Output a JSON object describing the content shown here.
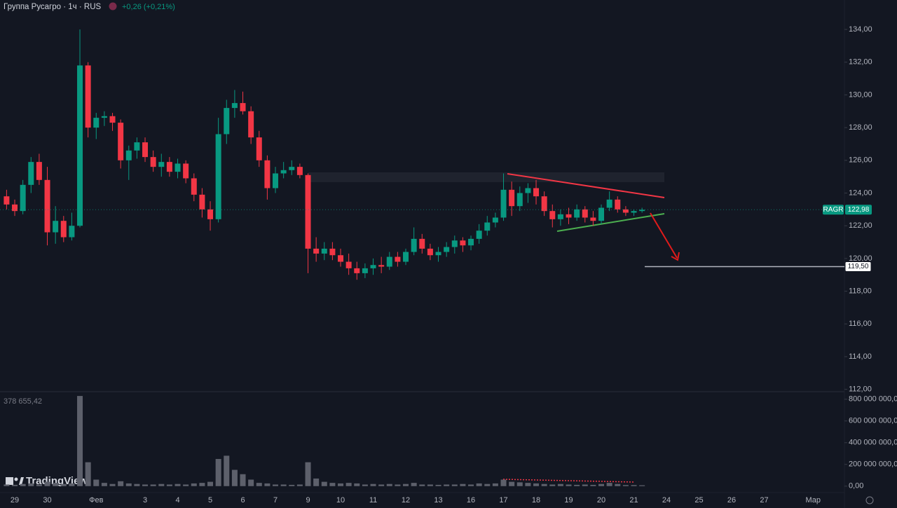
{
  "header": {
    "title": "Группа Русагро · 1ч · RUS",
    "change": "+0,26 (+0,21%)"
  },
  "branding": "TradingView",
  "chart_data": {
    "type": "candlestick",
    "categories": [
      null,
      "29",
      null,
      null,
      null,
      "30",
      null,
      null,
      null,
      null,
      null,
      "Фев",
      null,
      null,
      null,
      null,
      null,
      "3",
      null,
      null,
      null,
      "4",
      null,
      null,
      null,
      "5",
      null,
      null,
      null,
      "6",
      null,
      null,
      null,
      "7",
      null,
      null,
      null,
      "9",
      null,
      null,
      null,
      "10",
      null,
      null,
      null,
      "11",
      null,
      null,
      null,
      "12",
      null,
      null,
      null,
      "13",
      null,
      null,
      null,
      "16",
      null,
      null,
      null,
      "17",
      null,
      null,
      null,
      "18",
      null,
      null,
      null,
      "19",
      null,
      null,
      null,
      "20",
      null,
      null,
      null,
      "21",
      null,
      null,
      null,
      "24",
      null,
      null,
      null,
      "25",
      null,
      null,
      null,
      "26",
      null,
      null,
      null,
      "27",
      null,
      null,
      null,
      null,
      null,
      "Мар",
      null
    ],
    "open": [
      123.8,
      123.3,
      122.9,
      124.5,
      125.9,
      124.8,
      121.6,
      122.3,
      121.3,
      122.0,
      131.8,
      128.0,
      128.6,
      128.7,
      128.3,
      126.0,
      126.6,
      127.1,
      126.2,
      125.6,
      125.9,
      125.3,
      125.8,
      124.9,
      123.9,
      123.0,
      122.4,
      127.6,
      129.2,
      129.5,
      129.0,
      127.4,
      126.0,
      124.3,
      125.2,
      125.4,
      125.6,
      125.1,
      120.6,
      120.3,
      120.6,
      120.2,
      119.8,
      119.4,
      119.1,
      119.4,
      119.6,
      119.5,
      120.1,
      119.8,
      120.4,
      121.2,
      120.6,
      120.2,
      120.4,
      120.7,
      121.1,
      120.8,
      121.2,
      121.7,
      122.2,
      122.5,
      124.2,
      123.2,
      124.0,
      124.3,
      123.8,
      122.9,
      122.4,
      122.7,
      122.5,
      123.0,
      122.5,
      122.3,
      123.1,
      123.6,
      123.0,
      122.8,
      122.9,
      null,
      null,
      null,
      null,
      null,
      null,
      null,
      null,
      null,
      null,
      null,
      null,
      null,
      null,
      null,
      null,
      null,
      null,
      null,
      null,
      null,
      null
    ],
    "high": [
      124.2,
      123.6,
      124.8,
      126.2,
      126.4,
      125.6,
      123.2,
      122.6,
      122.8,
      134.0,
      132.0,
      128.9,
      129.0,
      128.9,
      128.5,
      126.9,
      127.4,
      127.4,
      126.6,
      126.4,
      126.2,
      126.1,
      126.0,
      125.2,
      124.3,
      123.5,
      128.6,
      129.7,
      130.3,
      130.2,
      129.3,
      127.8,
      126.3,
      125.6,
      125.9,
      126.0,
      125.8,
      125.2,
      121.3,
      121.0,
      121.0,
      120.6,
      120.3,
      119.8,
      119.7,
      120.0,
      120.1,
      120.4,
      120.4,
      120.6,
      121.9,
      121.5,
      120.9,
      120.7,
      121.0,
      121.4,
      121.3,
      121.4,
      122.1,
      122.6,
      122.8,
      125.2,
      124.7,
      124.4,
      124.6,
      124.8,
      124.1,
      123.3,
      123.0,
      123.1,
      123.3,
      123.2,
      122.9,
      123.3,
      124.1,
      123.8,
      123.2,
      123.0,
      123.1,
      null,
      null,
      null,
      null,
      null,
      null,
      null,
      null,
      null,
      null,
      null,
      null,
      null,
      null,
      null,
      null,
      null,
      null,
      null,
      null,
      null,
      null
    ],
    "low": [
      123.0,
      122.6,
      122.7,
      124.0,
      124.5,
      120.8,
      120.9,
      121.0,
      121.1,
      121.9,
      127.4,
      127.3,
      128.1,
      127.8,
      125.5,
      124.8,
      126.1,
      125.9,
      125.3,
      125.0,
      125.0,
      124.9,
      124.6,
      123.5,
      122.5,
      121.7,
      122.2,
      127.0,
      128.6,
      128.8,
      127.0,
      125.6,
      123.6,
      124.0,
      124.9,
      125.1,
      124.9,
      119.1,
      119.8,
      119.9,
      119.9,
      119.5,
      119.0,
      118.7,
      118.8,
      119.0,
      119.1,
      119.3,
      119.5,
      119.6,
      120.2,
      120.3,
      119.9,
      119.8,
      120.1,
      120.3,
      120.4,
      120.5,
      120.9,
      121.4,
      121.9,
      122.3,
      122.6,
      122.9,
      123.4,
      123.3,
      122.6,
      121.9,
      122.0,
      122.1,
      122.3,
      122.2,
      122.0,
      122.1,
      122.9,
      122.8,
      122.6,
      122.6,
      122.8,
      null,
      null,
      null,
      null,
      null,
      null,
      null,
      null,
      null,
      null,
      null,
      null,
      null,
      null,
      null,
      null,
      null,
      null,
      null,
      null,
      null,
      null
    ],
    "close": [
      123.3,
      122.9,
      124.5,
      125.9,
      124.8,
      121.6,
      122.3,
      121.3,
      122.0,
      131.8,
      128.0,
      128.6,
      128.7,
      128.3,
      126.0,
      126.6,
      127.1,
      126.2,
      125.6,
      125.9,
      125.3,
      125.8,
      124.9,
      123.9,
      123.0,
      122.4,
      127.6,
      129.2,
      129.5,
      129.0,
      127.4,
      126.0,
      124.3,
      125.2,
      125.4,
      125.6,
      125.1,
      120.6,
      120.3,
      120.6,
      120.2,
      119.8,
      119.4,
      119.1,
      119.4,
      119.6,
      119.5,
      120.1,
      119.8,
      120.4,
      121.2,
      120.6,
      120.2,
      120.4,
      120.7,
      121.1,
      120.8,
      121.2,
      121.7,
      122.2,
      122.5,
      124.2,
      123.2,
      124.0,
      124.3,
      123.8,
      122.9,
      122.4,
      122.7,
      122.5,
      123.0,
      122.5,
      122.3,
      123.1,
      123.6,
      123.0,
      122.8,
      122.9,
      122.98,
      null,
      null,
      null,
      null,
      null,
      null,
      null,
      null,
      null,
      null,
      null,
      null,
      null,
      null,
      null,
      null,
      null,
      null,
      null,
      null,
      null,
      null
    ],
    "volume": [
      15000000,
      12000000,
      20000000,
      25000000,
      15000000,
      40000000,
      30000000,
      20000000,
      25000000,
      830000000,
      220000000,
      60000000,
      30000000,
      20000000,
      45000000,
      25000000,
      20000000,
      15000000,
      15000000,
      20000000,
      15000000,
      20000000,
      15000000,
      25000000,
      30000000,
      40000000,
      250000000,
      280000000,
      150000000,
      110000000,
      60000000,
      30000000,
      25000000,
      15000000,
      15000000,
      12000000,
      15000000,
      220000000,
      70000000,
      40000000,
      30000000,
      25000000,
      30000000,
      25000000,
      15000000,
      20000000,
      15000000,
      20000000,
      15000000,
      20000000,
      30000000,
      15000000,
      15000000,
      12000000,
      15000000,
      15000000,
      20000000,
      15000000,
      25000000,
      20000000,
      25000000,
      60000000,
      40000000,
      35000000,
      30000000,
      25000000,
      20000000,
      15000000,
      20000000,
      15000000,
      12000000,
      15000000,
      12000000,
      20000000,
      30000000,
      20000000,
      10000000,
      10000000,
      8000000,
      null,
      null,
      null,
      null,
      null,
      null,
      null,
      null,
      null,
      null,
      null,
      null,
      null,
      null,
      null,
      null,
      null,
      null,
      null,
      null,
      null,
      null
    ],
    "up_color": "#089981",
    "down_color": "#f23645",
    "volume_color": "#5d606b",
    "ylim": [
      111.9,
      135.8
    ],
    "yticks": [
      {
        "value": 112,
        "label": "112,00"
      },
      {
        "value": 114,
        "label": "114,00"
      },
      {
        "value": 116,
        "label": "116,00"
      },
      {
        "value": 118,
        "label": "118,00"
      },
      {
        "value": 120,
        "label": "120,00"
      },
      {
        "value": 122,
        "label": "122,00"
      },
      {
        "value": 124,
        "label": "124,00"
      },
      {
        "value": 126,
        "label": "126,00"
      },
      {
        "value": 128,
        "label": "128,00"
      },
      {
        "value": 130,
        "label": "130,00"
      },
      {
        "value": 132,
        "label": "132,00"
      },
      {
        "value": 134,
        "label": "134,00"
      }
    ],
    "volume_ylim": [
      -40000000,
      850000000
    ],
    "volume_yticks": [
      {
        "value": 0,
        "label": "0,00"
      },
      {
        "value": 200000000,
        "label": "200 000 000,00"
      },
      {
        "value": 400000000,
        "label": "400 000 000,00"
      },
      {
        "value": 600000000,
        "label": "600 000 000,00"
      },
      {
        "value": 800000000,
        "label": "800 000 000,00"
      }
    ],
    "volume_label": "378 655,42",
    "last_price": {
      "symbol": "RAGR",
      "value": 122.98,
      "label": "122,98",
      "color": "#089981"
    },
    "target": {
      "value": 119.5,
      "label": "119,50"
    },
    "grid": false
  }
}
